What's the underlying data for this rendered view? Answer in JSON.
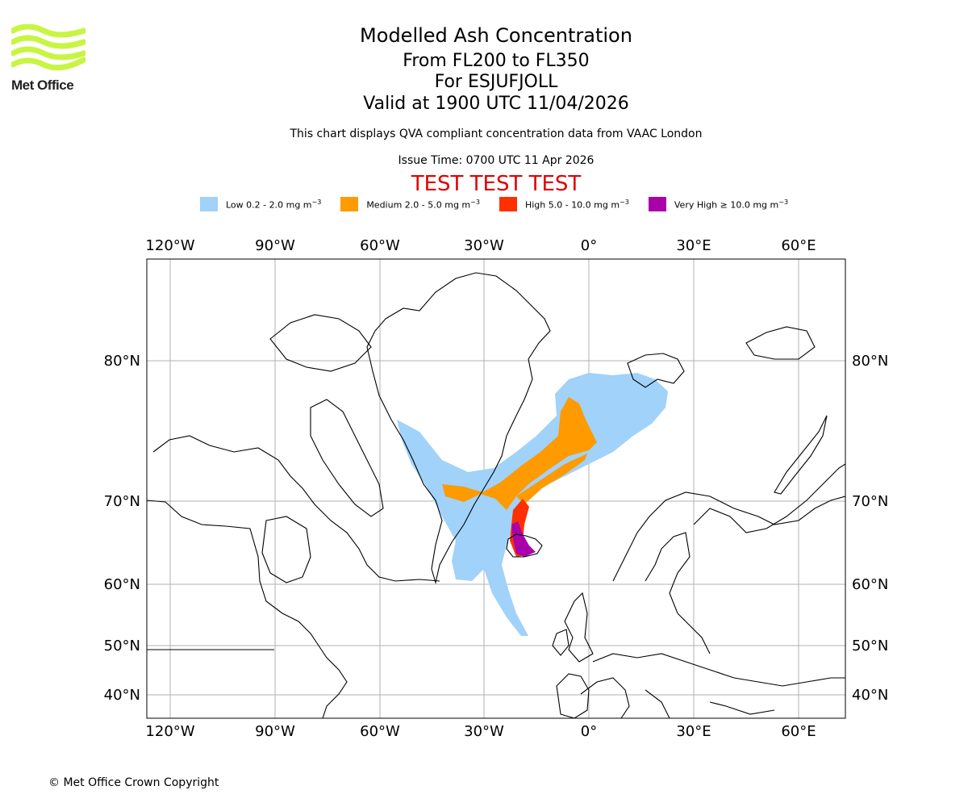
{
  "header": {
    "title": "Modelled Ash Concentration",
    "levels": "From FL200 to FL350",
    "volcano": "For ESJUFJOLL",
    "valid": "Valid at 1900 UTC 11/04/2026",
    "note": "This chart displays QVA compliant concentration data from VAAC London",
    "issue": "Issue Time: 0700 UTC 11 Apr 2026",
    "test": "TEST TEST TEST"
  },
  "logo": {
    "text": "Met Office",
    "icon": "met-office-waves-logo",
    "color": "#c8f542"
  },
  "legend": [
    {
      "label": "Low 0.2 - 2.0 mg m",
      "sup": "−3",
      "color": "#a0d2fa"
    },
    {
      "label": "Medium 2.0 - 5.0 mg m",
      "sup": "−3",
      "color": "#ff9a00"
    },
    {
      "label": "High 5.0 - 10.0 mg m",
      "sup": "−3",
      "color": "#ff3000"
    },
    {
      "label": "Very High  ≥  10.0 mg m",
      "sup": "−3",
      "color": "#aa00aa"
    }
  ],
  "map": {
    "lon_ticks": [
      "120°W",
      "90°W",
      "60°W",
      "30°W",
      "0°",
      "30°E",
      "60°E"
    ],
    "lat_ticks": [
      "80°N",
      "70°N",
      "60°N",
      "50°N",
      "40°N"
    ],
    "lon_values": [
      -120,
      -90,
      -60,
      -30,
      0,
      30,
      60
    ],
    "lat_values": [
      80,
      70,
      60,
      50,
      40
    ]
  },
  "footer": {
    "copyright": "© Met Office Crown Copyright"
  }
}
